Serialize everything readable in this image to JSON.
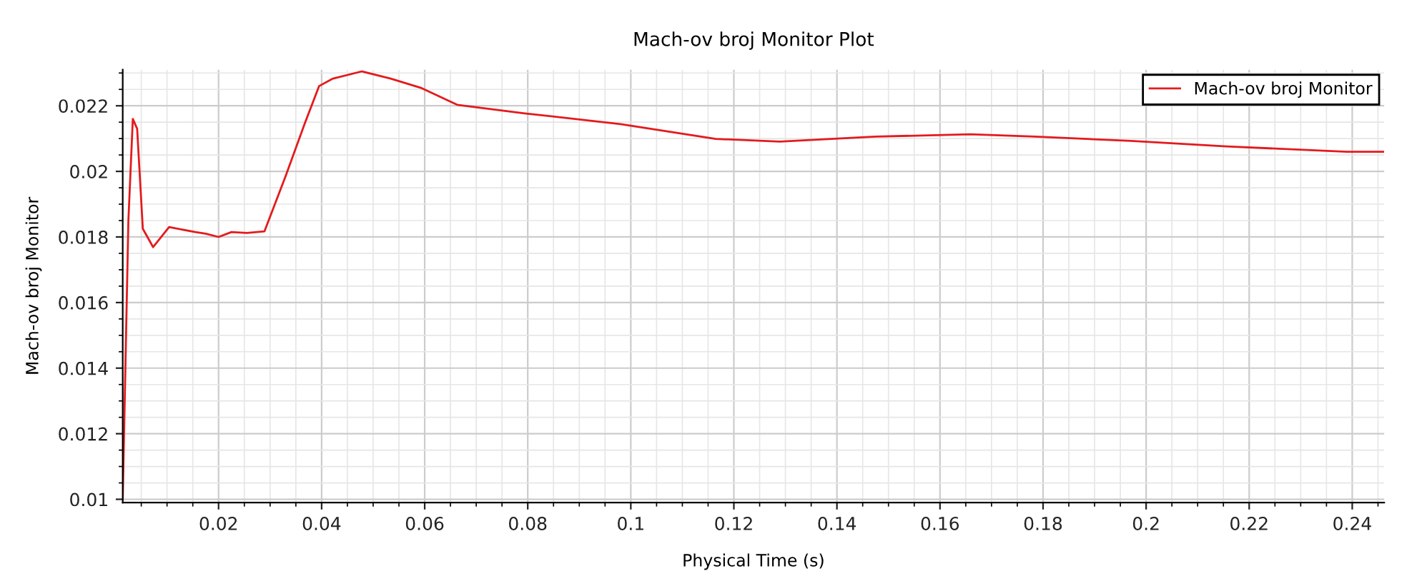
{
  "chart_data": {
    "type": "line",
    "title": "Mach-ov broj Monitor Plot",
    "xlabel": "Physical Time (s)",
    "ylabel": "Mach-ov broj Monitor",
    "x": [
      0.0014,
      0.0025,
      0.00336,
      0.0042,
      0.0053,
      0.0073,
      0.0104,
      0.0155,
      0.0175,
      0.02,
      0.0225,
      0.0255,
      0.0289,
      0.033,
      0.0367,
      0.0395,
      0.0422,
      0.0478,
      0.0534,
      0.0594,
      0.0663,
      0.0794,
      0.098,
      0.1165,
      0.1289,
      0.1475,
      0.1659,
      0.1784,
      0.197,
      0.2156,
      0.239,
      0.246
    ],
    "series": [
      {
        "name": "Mach-ov broj Monitor",
        "color": "#e41a1c",
        "values": [
          0.01,
          0.0185,
          0.0216,
          0.0213,
          0.01825,
          0.01769,
          0.0183,
          0.01815,
          0.0181,
          0.018,
          0.01815,
          0.01812,
          0.01817,
          0.01985,
          0.02145,
          0.0226,
          0.02283,
          0.02305,
          0.02283,
          0.02254,
          0.02203,
          0.02177,
          0.02144,
          0.02099,
          0.02091,
          0.02106,
          0.02113,
          0.02106,
          0.02093,
          0.02076,
          0.0206,
          0.0206
        ]
      }
    ],
    "xlim": [
      0.0014,
      0.2462
    ],
    "xticks": [
      0.02,
      0.04,
      0.06,
      0.08,
      0.1,
      0.12,
      0.14,
      0.16,
      0.18,
      0.2,
      0.22,
      0.24
    ],
    "ylim": [
      0.0099,
      0.0231
    ],
    "yticks": [
      0.01,
      0.012,
      0.014,
      0.016,
      0.018,
      0.02,
      0.022
    ],
    "grid": true,
    "legend": "top right",
    "marker": "none",
    "line_style": "solid"
  }
}
